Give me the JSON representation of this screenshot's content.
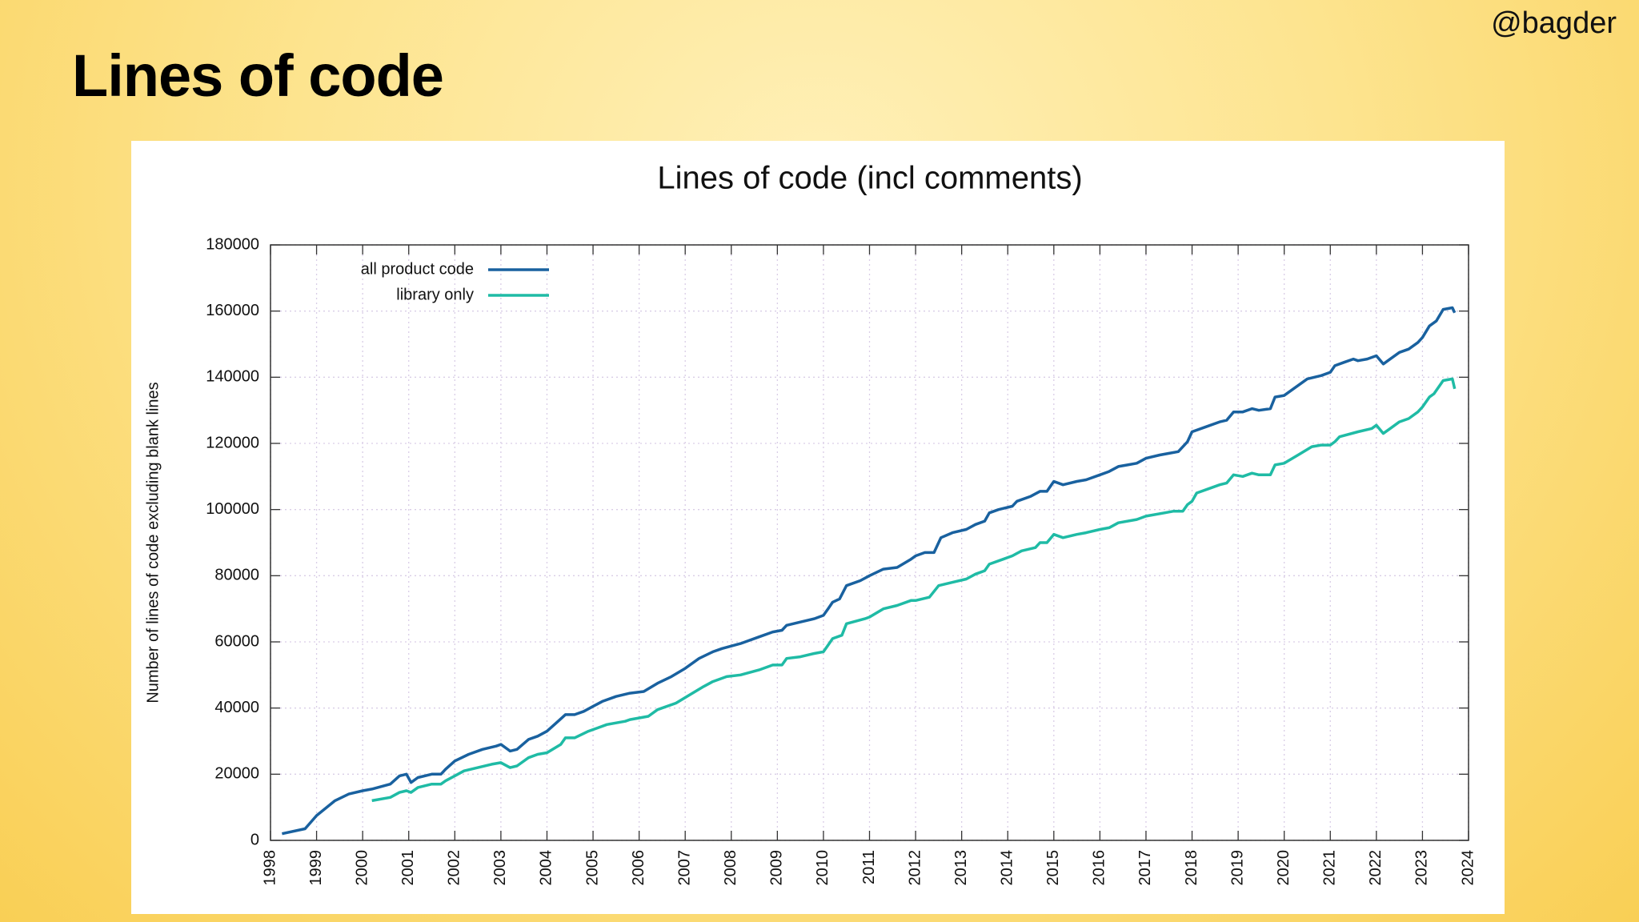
{
  "slide": {
    "title": "Lines of code",
    "handle": "@bagder"
  },
  "chart_data": {
    "type": "line",
    "title": "Lines of code (incl comments)",
    "y_label": "Number of lines of code excluding blank lines",
    "xlim": [
      1998,
      2024
    ],
    "xticks": [
      1998,
      1999,
      2000,
      2001,
      2002,
      2003,
      2004,
      2005,
      2006,
      2007,
      2008,
      2009,
      2010,
      2011,
      2012,
      2013,
      2014,
      2015,
      2016,
      2017,
      2018,
      2019,
      2020,
      2021,
      2022,
      2023,
      2024
    ],
    "ylim": [
      0,
      180000
    ],
    "yticks": [
      0,
      20000,
      40000,
      60000,
      80000,
      100000,
      120000,
      140000,
      160000,
      180000
    ],
    "grid": true,
    "legend": "upper left",
    "series": [
      {
        "name": "all product code",
        "color": "#19619f",
        "x": [
          1998.25,
          1998.75,
          1999.0,
          1999.4,
          1999.7,
          2000.0,
          2000.2,
          2000.6,
          2000.8,
          2000.95,
          2001.05,
          2001.2,
          2001.5,
          2001.7,
          2001.8,
          2002.0,
          2002.3,
          2002.6,
          2002.9,
          2003.0,
          2003.2,
          2003.35,
          2003.6,
          2003.8,
          2004.0,
          2004.2,
          2004.4,
          2004.6,
          2004.8,
          2005.0,
          2005.2,
          2005.5,
          2005.8,
          2006.1,
          2006.4,
          2006.7,
          2007.0,
          2007.3,
          2007.6,
          2007.8,
          2008.2,
          2008.6,
          2008.9,
          2009.1,
          2009.2,
          2009.5,
          2009.8,
          2010.0,
          2010.1,
          2010.2,
          2010.35,
          2010.5,
          2010.8,
          2011.0,
          2011.3,
          2011.6,
          2011.9,
          2012.0,
          2012.2,
          2012.4,
          2012.55,
          2012.8,
          2013.1,
          2013.3,
          2013.5,
          2013.6,
          2013.8,
          2014.1,
          2014.2,
          2014.5,
          2014.7,
          2014.85,
          2015.0,
          2015.2,
          2015.5,
          2015.7,
          2016.0,
          2016.2,
          2016.4,
          2016.6,
          2016.8,
          2017.0,
          2017.3,
          2017.5,
          2017.7,
          2017.9,
          2018.0,
          2018.3,
          2018.6,
          2018.75,
          2018.9,
          2019.1,
          2019.3,
          2019.45,
          2019.7,
          2019.8,
          2020.0,
          2020.2,
          2020.5,
          2020.8,
          2021.0,
          2021.1,
          2021.3,
          2021.5,
          2021.6,
          2021.8,
          2022.0,
          2022.15,
          2022.3,
          2022.5,
          2022.7,
          2022.9,
          2023.0,
          2023.15,
          2023.3,
          2023.45,
          2023.65,
          2023.7
        ],
        "values": [
          2000,
          3500,
          7500,
          12000,
          14000,
          15000,
          15500,
          17000,
          19500,
          20000,
          17500,
          19000,
          20000,
          20000,
          21500,
          24000,
          26000,
          27500,
          28500,
          29000,
          27000,
          27500,
          30500,
          31500,
          33000,
          35500,
          38000,
          38000,
          39000,
          40500,
          42000,
          43500,
          44500,
          45000,
          47500,
          49500,
          52000,
          55000,
          57000,
          58000,
          59500,
          61500,
          63000,
          63500,
          65000,
          66000,
          67000,
          68000,
          70000,
          72000,
          73000,
          77000,
          78500,
          80000,
          82000,
          82500,
          85000,
          86000,
          87000,
          87000,
          91500,
          93000,
          94000,
          95500,
          96500,
          99000,
          100000,
          101000,
          102500,
          104000,
          105500,
          105500,
          108500,
          107500,
          108500,
          109000,
          110500,
          111500,
          113000,
          113500,
          114000,
          115500,
          116500,
          117000,
          117500,
          120500,
          123500,
          125000,
          126500,
          127000,
          129500,
          129500,
          130500,
          130000,
          130500,
          134000,
          134500,
          136500,
          139500,
          140500,
          141500,
          143500,
          144500,
          145500,
          145000,
          145500,
          146500,
          144000,
          145500,
          147500,
          148500,
          150500,
          152000,
          155500,
          157000,
          160500,
          161000,
          159500
        ]
      },
      {
        "name": "library only",
        "color": "#1fbba5",
        "x": [
          2000.2,
          2000.6,
          2000.8,
          2000.95,
          2001.05,
          2001.2,
          2001.5,
          2001.7,
          2001.8,
          2002.0,
          2002.2,
          2002.5,
          2002.8,
          2003.0,
          2003.2,
          2003.35,
          2003.6,
          2003.8,
          2004.0,
          2004.3,
          2004.4,
          2004.6,
          2004.9,
          2005.1,
          2005.3,
          2005.7,
          2005.8,
          2006.2,
          2006.4,
          2006.8,
          2007.1,
          2007.4,
          2007.6,
          2007.9,
          2008.2,
          2008.6,
          2008.9,
          2009.1,
          2009.2,
          2009.5,
          2009.8,
          2010.0,
          2010.1,
          2010.2,
          2010.4,
          2010.5,
          2010.9,
          2011.0,
          2011.3,
          2011.6,
          2011.9,
          2012.0,
          2012.3,
          2012.5,
          2012.8,
          2013.1,
          2013.3,
          2013.5,
          2013.6,
          2013.9,
          2014.1,
          2014.3,
          2014.6,
          2014.7,
          2014.85,
          2015.0,
          2015.2,
          2015.5,
          2015.7,
          2016.0,
          2016.2,
          2016.4,
          2016.8,
          2017.0,
          2017.4,
          2017.6,
          2017.8,
          2017.9,
          2018.0,
          2018.1,
          2018.4,
          2018.6,
          2018.75,
          2018.9,
          2019.1,
          2019.3,
          2019.45,
          2019.7,
          2019.8,
          2020.0,
          2020.3,
          2020.6,
          2020.8,
          2021.0,
          2021.1,
          2021.2,
          2021.6,
          2021.9,
          2022.0,
          2022.15,
          2022.3,
          2022.5,
          2022.7,
          2022.9,
          2023.0,
          2023.15,
          2023.25,
          2023.45,
          2023.65,
          2023.7
        ],
        "values": [
          12000,
          13000,
          14500,
          15000,
          14500,
          16000,
          17000,
          17000,
          18000,
          19500,
          21000,
          22000,
          23000,
          23500,
          22000,
          22500,
          25000,
          26000,
          26500,
          29000,
          31000,
          31000,
          33000,
          34000,
          35000,
          36000,
          36500,
          37500,
          39500,
          41500,
          44000,
          46500,
          48000,
          49500,
          50000,
          51500,
          53000,
          53000,
          55000,
          55500,
          56500,
          57000,
          59000,
          61000,
          62000,
          65500,
          67000,
          67500,
          70000,
          71000,
          72500,
          72500,
          73500,
          77000,
          78000,
          79000,
          80500,
          81500,
          83500,
          85000,
          86000,
          87500,
          88500,
          90000,
          90000,
          92500,
          91500,
          92500,
          93000,
          94000,
          94500,
          96000,
          97000,
          98000,
          99000,
          99500,
          99500,
          101500,
          102500,
          105000,
          106500,
          107500,
          108000,
          110500,
          110000,
          111000,
          110500,
          110500,
          113500,
          114000,
          116500,
          119000,
          119500,
          119500,
          120500,
          122000,
          123500,
          124500,
          125500,
          123000,
          124500,
          126500,
          127500,
          129500,
          131000,
          134000,
          135000,
          139000,
          139500,
          136500
        ]
      }
    ]
  }
}
